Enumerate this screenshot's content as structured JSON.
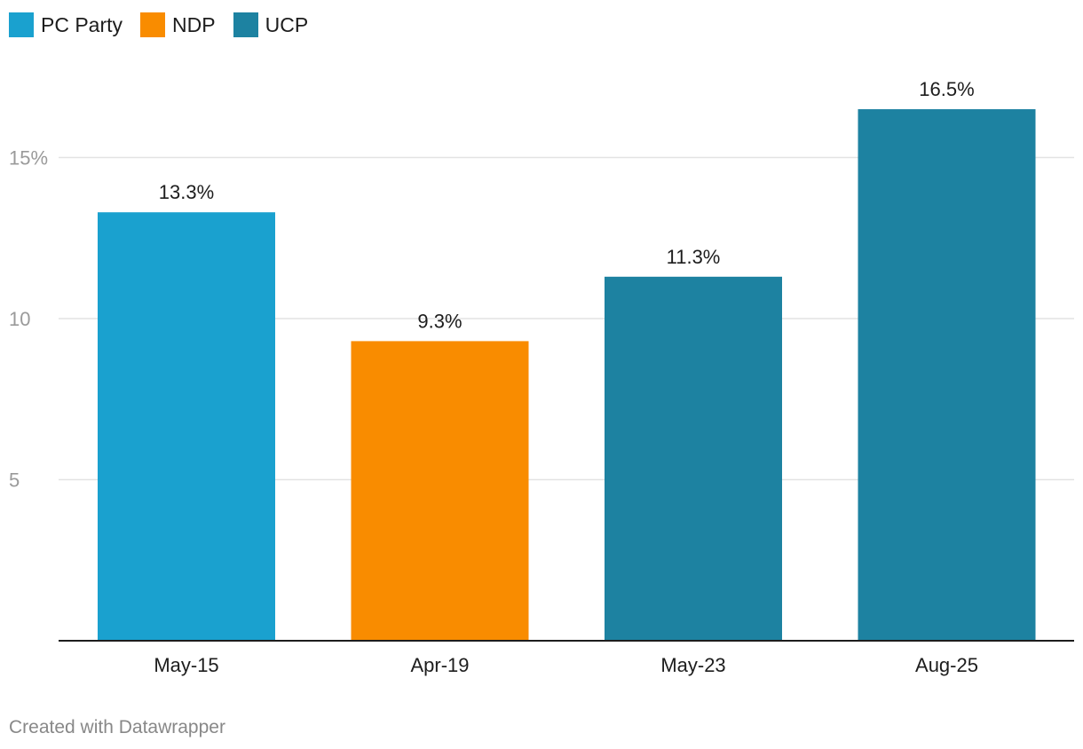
{
  "legend": [
    {
      "label": "PC Party",
      "color": "#1aa1cf"
    },
    {
      "label": "NDP",
      "color": "#f98c00"
    },
    {
      "label": "UCP",
      "color": "#1d82a1"
    }
  ],
  "chart_data": {
    "type": "bar",
    "categories": [
      "May-15",
      "Apr-19",
      "May-23",
      "Aug-25"
    ],
    "values": [
      13.3,
      9.3,
      11.3,
      16.5
    ],
    "value_labels": [
      "13.3%",
      "9.3%",
      "11.3%",
      "16.5%"
    ],
    "series_of_bar": [
      "PC Party",
      "NDP",
      "UCP",
      "UCP"
    ],
    "bar_colors": [
      "#1aa1cf",
      "#f98c00",
      "#1d82a1",
      "#1d82a1"
    ],
    "title": "",
    "xlabel": "",
    "ylabel": "",
    "ylim": [
      0,
      17.5
    ],
    "yticks": [
      5,
      10,
      15
    ],
    "ytick_labels": [
      "5",
      "10",
      "15%"
    ],
    "grid": true,
    "legend_position": "top-left"
  },
  "footer": {
    "credit": "Created with Datawrapper"
  }
}
